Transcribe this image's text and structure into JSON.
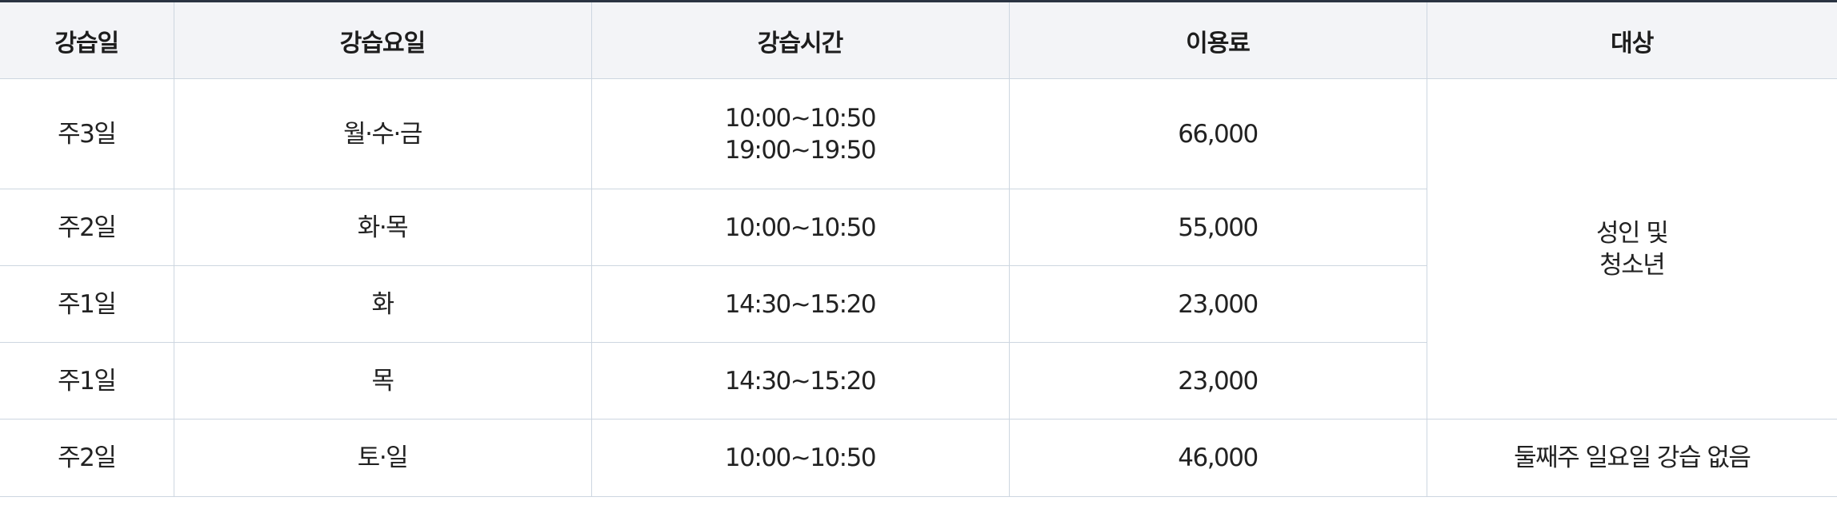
{
  "headers": [
    "강습일",
    "강습요일",
    "강습시간",
    "이용료",
    "대상"
  ],
  "rows": [
    {
      "days": "주3일",
      "weekdays": "월·수·금",
      "times": [
        "10:00~10:50",
        "19:00~19:50"
      ],
      "fee": "66,000"
    },
    {
      "days": "주2일",
      "weekdays": "화·목",
      "times": [
        "10:00~10:50"
      ],
      "fee": "55,000"
    },
    {
      "days": "주1일",
      "weekdays": "화",
      "times": [
        "14:30~15:20"
      ],
      "fee": "23,000"
    },
    {
      "days": "주1일",
      "weekdays": "목",
      "times": [
        "14:30~15:20"
      ],
      "fee": "23,000"
    },
    {
      "days": "주2일",
      "weekdays": "토·일",
      "times": [
        "10:00~10:50"
      ],
      "fee": "46,000"
    }
  ],
  "targets": {
    "group1": [
      "성인 및",
      "청소년"
    ],
    "group2": "둘째주 일요일 강습 없음"
  }
}
